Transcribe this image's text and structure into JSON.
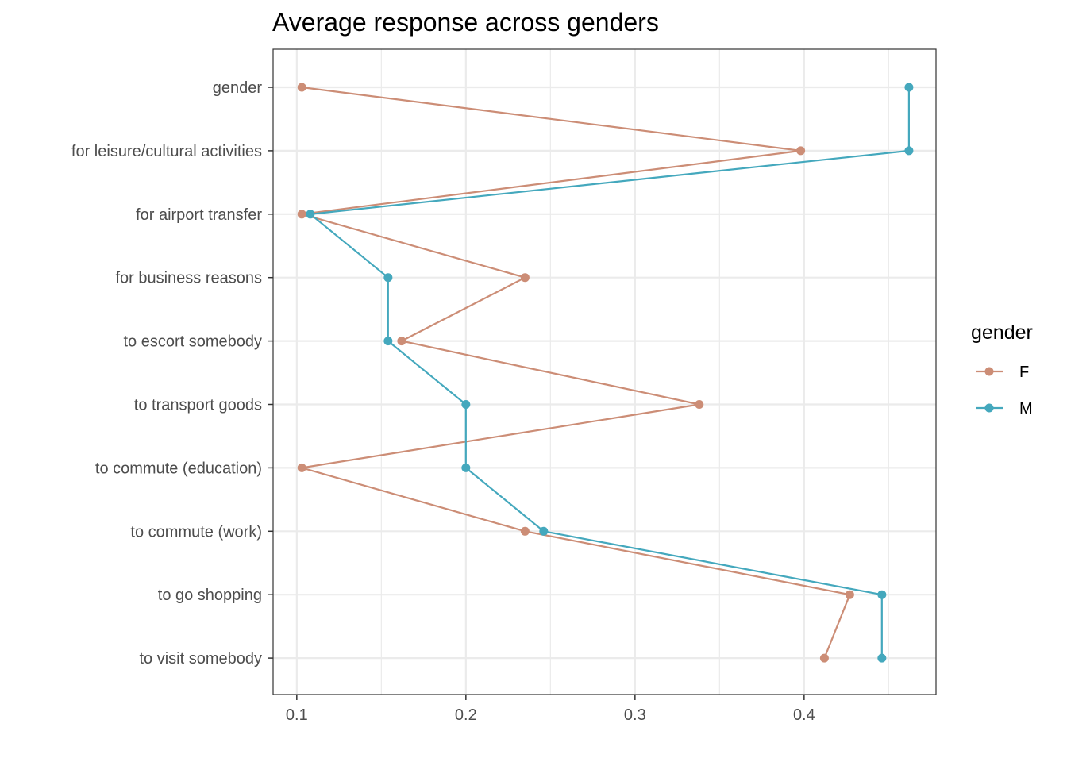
{
  "chart_data": {
    "type": "line",
    "title": "Average response across genders",
    "xlabel": "",
    "ylabel": "",
    "xlim": [
      0.086,
      0.478
    ],
    "x_ticks": [
      0.1,
      0.2,
      0.3,
      0.4
    ],
    "x_tick_labels": [
      "0.1",
      "0.2",
      "0.3",
      "0.4"
    ],
    "categories": [
      "gender",
      "for leisure/cultural activities",
      "for airport transfer",
      "for business reasons",
      "to escort somebody",
      "to transport goods",
      "to commute (education)",
      "to commute (work)",
      "to go shopping",
      "to visit somebody"
    ],
    "series": [
      {
        "name": "F",
        "color": "#CC8D76",
        "values": [
          0.103,
          0.398,
          0.103,
          0.235,
          0.162,
          0.338,
          0.103,
          0.235,
          0.427,
          0.412
        ]
      },
      {
        "name": "M",
        "color": "#44A8BD",
        "values": [
          0.462,
          0.462,
          0.108,
          0.154,
          0.154,
          0.2,
          0.2,
          0.246,
          0.446,
          0.446
        ]
      }
    ],
    "grid": true,
    "legend": {
      "title": "gender",
      "position": "right"
    }
  }
}
